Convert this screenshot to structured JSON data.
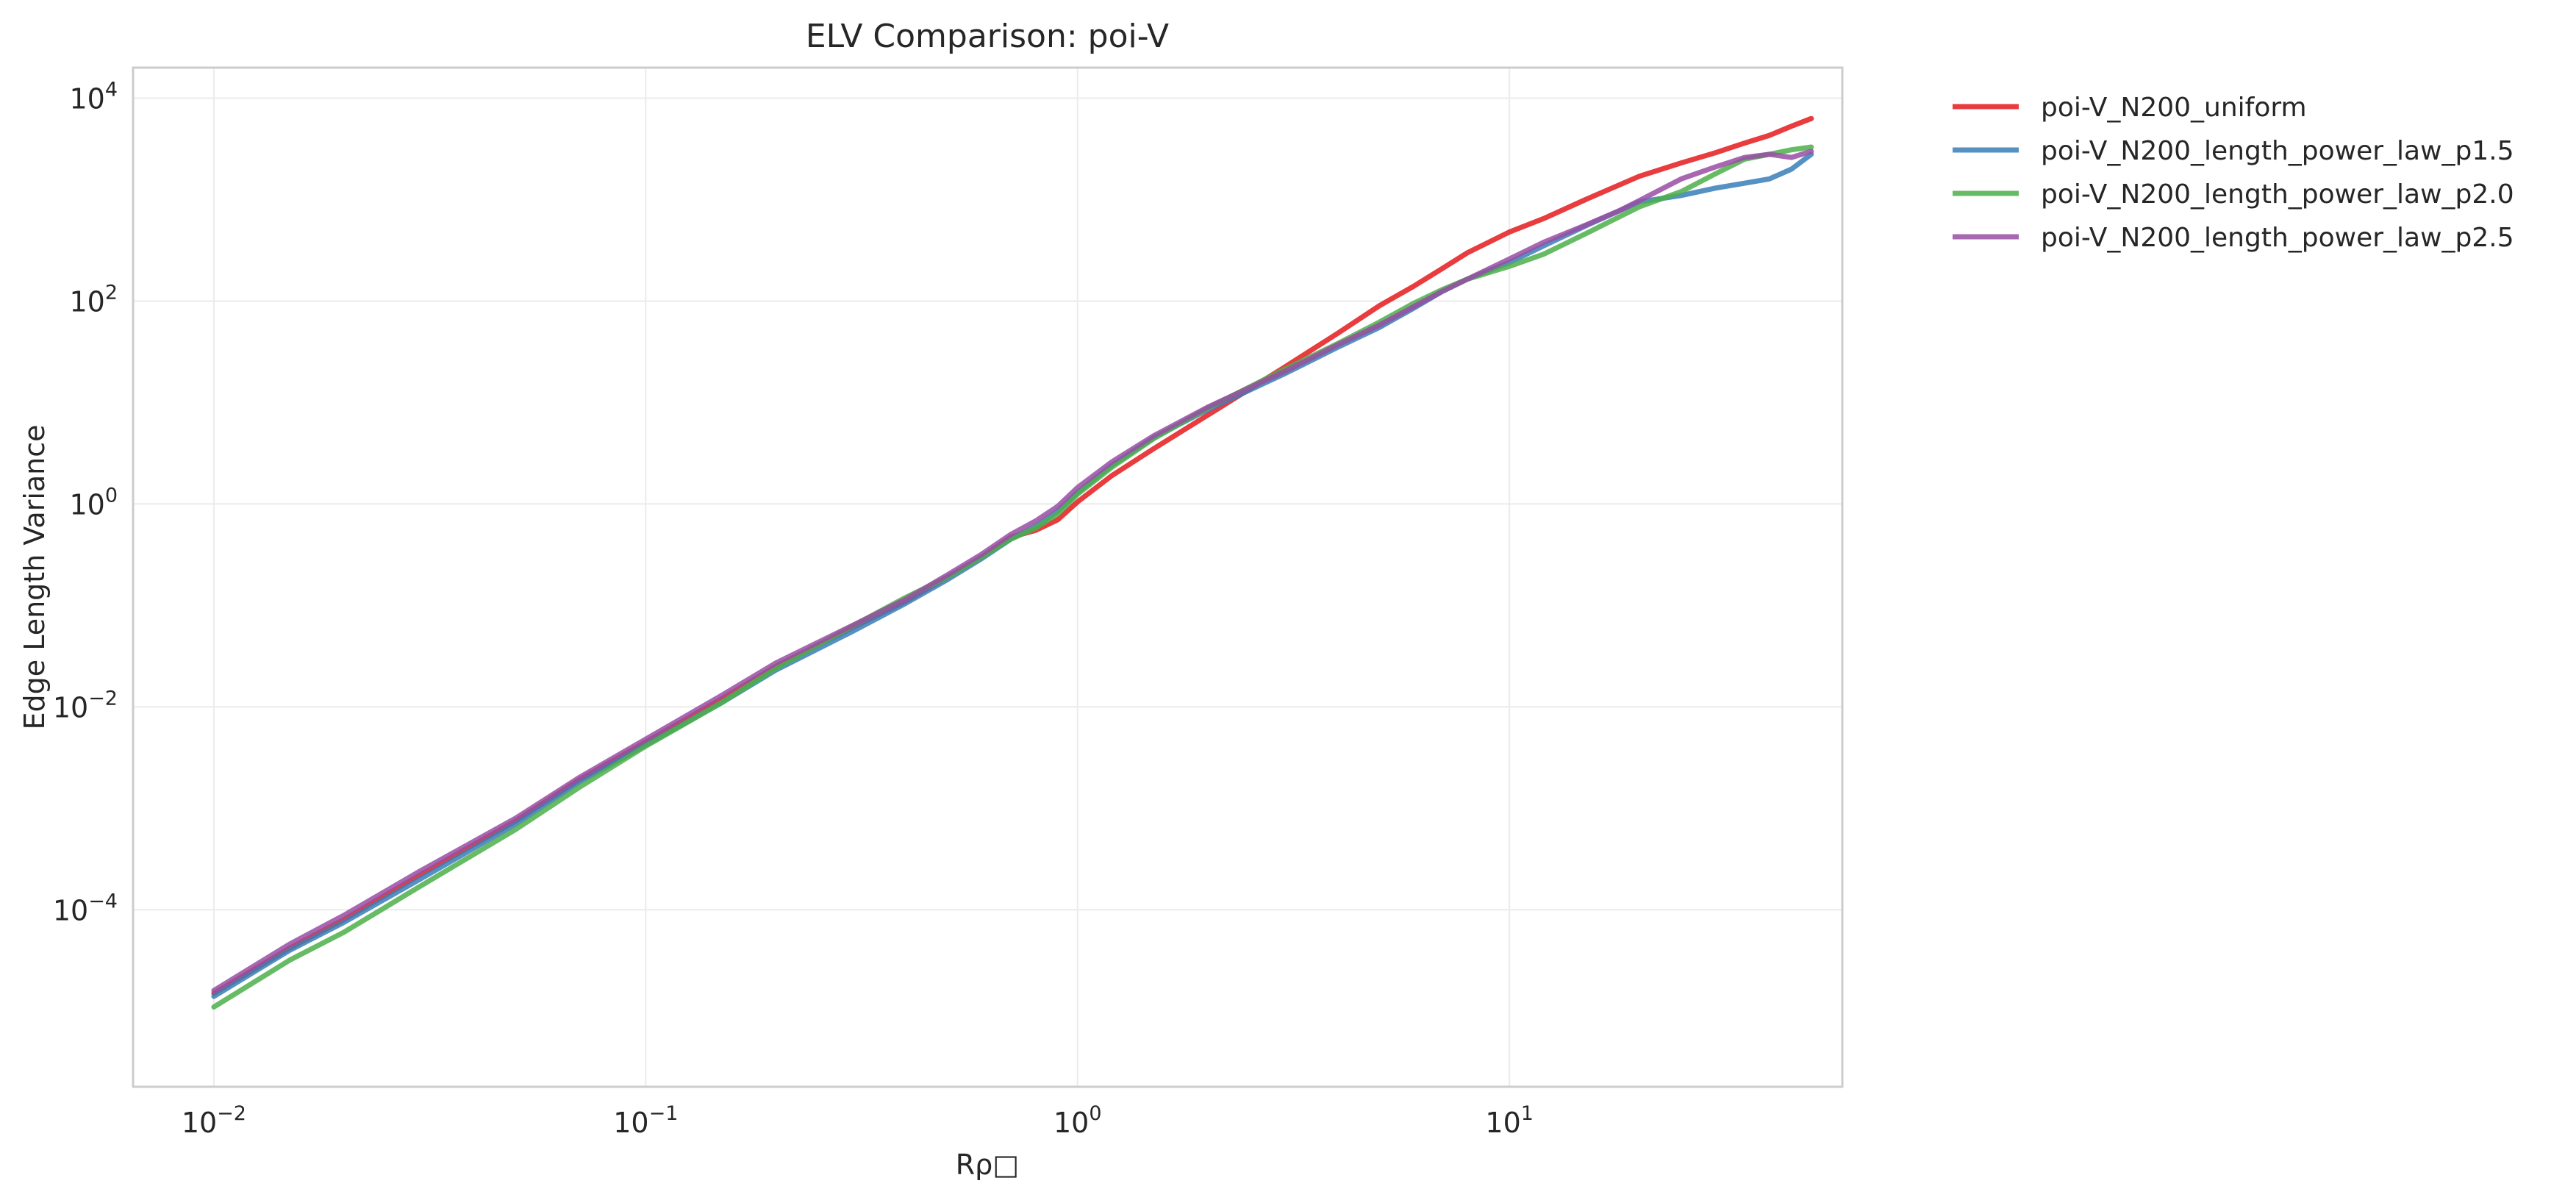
{
  "chart_data": {
    "type": "line",
    "title": "ELV Comparison: poi-V",
    "xlabel": "Rρ□",
    "ylabel": "Edge Length Variance",
    "x_scale": "log",
    "y_scale": "log",
    "xlim": [
      0.0065,
      59
    ],
    "ylim": [
      1.8e-06,
      20000
    ],
    "x_ticks": [
      {
        "value": 0.01,
        "base": "10",
        "exp": "−2"
      },
      {
        "value": 0.1,
        "base": "10",
        "exp": "−1"
      },
      {
        "value": 1,
        "base": "10",
        "exp": "0"
      },
      {
        "value": 10,
        "base": "10",
        "exp": "1"
      }
    ],
    "y_ticks": [
      {
        "value": 0.0001,
        "base": "10",
        "exp": "−4"
      },
      {
        "value": 0.01,
        "base": "10",
        "exp": "−2"
      },
      {
        "value": 1,
        "base": "10",
        "exp": "0"
      },
      {
        "value": 100,
        "base": "10",
        "exp": "2"
      },
      {
        "value": 10000,
        "base": "10",
        "exp": "4"
      }
    ],
    "grid": true,
    "legend_position": "outside-top-right",
    "series": [
      {
        "name": "poi-V_N200_uniform",
        "color": "#e41a1c",
        "x": [
          0.01,
          0.015,
          0.02,
          0.03,
          0.05,
          0.07,
          0.1,
          0.15,
          0.2,
          0.3,
          0.4,
          0.5,
          0.6,
          0.7,
          0.8,
          0.9,
          1.0,
          1.2,
          1.5,
          2,
          3,
          4,
          5,
          6,
          7,
          8,
          10,
          12,
          15,
          18,
          20,
          25,
          30,
          35,
          40,
          45,
          50
        ],
        "y": [
          1.5e-05,
          4.2e-05,
          8e-05,
          0.00022,
          0.00075,
          0.0019,
          0.0045,
          0.012,
          0.025,
          0.06,
          0.11,
          0.19,
          0.3,
          0.47,
          0.55,
          0.7,
          1.05,
          1.9,
          3.5,
          7.5,
          22,
          48,
          90,
          140,
          210,
          300,
          480,
          650,
          1000,
          1400,
          1700,
          2300,
          2900,
          3600,
          4300,
          5300,
          6300
        ]
      },
      {
        "name": "poi-V_N200_length_power_law_p1.5",
        "color": "#377eb8",
        "x": [
          0.01,
          0.015,
          0.02,
          0.03,
          0.05,
          0.07,
          0.1,
          0.15,
          0.2,
          0.3,
          0.4,
          0.5,
          0.6,
          0.7,
          0.8,
          0.9,
          1.0,
          1.2,
          1.5,
          2,
          3,
          4,
          5,
          6,
          7,
          8,
          10,
          12,
          15,
          18,
          20,
          25,
          30,
          35,
          40,
          45,
          50
        ],
        "y": [
          1.4e-05,
          4e-05,
          7.5e-05,
          0.0002,
          0.0007,
          0.0018,
          0.0042,
          0.011,
          0.023,
          0.055,
          0.105,
          0.18,
          0.29,
          0.45,
          0.6,
          0.85,
          1.3,
          2.4,
          4.5,
          8.5,
          19,
          35,
          55,
          85,
          125,
          165,
          240,
          350,
          550,
          780,
          950,
          1100,
          1300,
          1450,
          1600,
          2000,
          2800
        ]
      },
      {
        "name": "poi-V_N200_length_power_law_p2.0",
        "color": "#4daf4a",
        "x": [
          0.01,
          0.015,
          0.02,
          0.03,
          0.05,
          0.07,
          0.1,
          0.15,
          0.2,
          0.3,
          0.4,
          0.5,
          0.6,
          0.7,
          0.8,
          0.9,
          1.0,
          1.2,
          1.5,
          2,
          3,
          4,
          5,
          6,
          7,
          8,
          10,
          12,
          15,
          18,
          20,
          25,
          30,
          35,
          40,
          45,
          50
        ],
        "y": [
          1.1e-05,
          3.2e-05,
          6e-05,
          0.00017,
          0.00062,
          0.0016,
          0.0041,
          0.011,
          0.024,
          0.062,
          0.12,
          0.19,
          0.3,
          0.45,
          0.58,
          0.8,
          1.25,
          2.3,
          4.4,
          8.8,
          21,
          38,
          62,
          95,
          130,
          165,
          220,
          290,
          460,
          680,
          850,
          1200,
          1800,
          2500,
          2800,
          3100,
          3300
        ]
      },
      {
        "name": "poi-V_N200_length_power_law_p2.5",
        "color": "#984ea3",
        "x": [
          0.01,
          0.015,
          0.02,
          0.03,
          0.05,
          0.07,
          0.1,
          0.15,
          0.2,
          0.3,
          0.4,
          0.5,
          0.6,
          0.7,
          0.8,
          0.9,
          1.0,
          1.2,
          1.5,
          2,
          3,
          4,
          5,
          6,
          7,
          8,
          10,
          12,
          15,
          18,
          20,
          25,
          30,
          35,
          40,
          45,
          50
        ],
        "y": [
          1.6e-05,
          4.6e-05,
          8.8e-05,
          0.00024,
          0.0008,
          0.002,
          0.0048,
          0.013,
          0.027,
          0.063,
          0.115,
          0.2,
          0.32,
          0.5,
          0.68,
          0.95,
          1.45,
          2.6,
          4.7,
          9,
          20,
          37,
          58,
          88,
          125,
          165,
          260,
          380,
          560,
          780,
          980,
          1600,
          2100,
          2600,
          2800,
          2600,
          3000
        ]
      }
    ]
  }
}
